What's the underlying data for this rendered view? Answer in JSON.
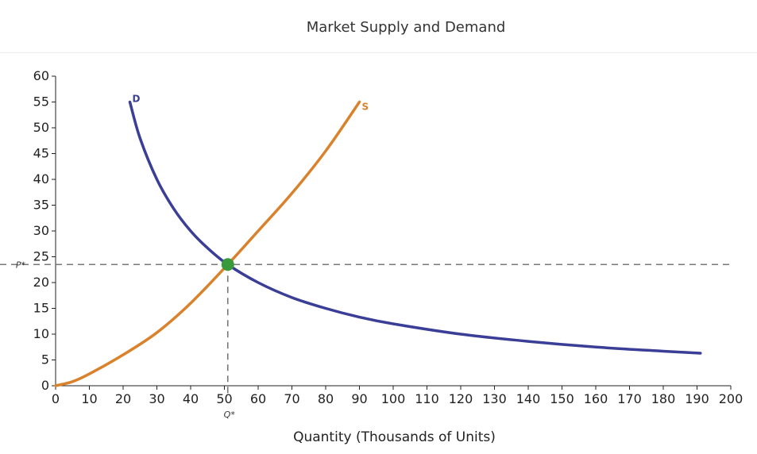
{
  "chart_data": {
    "type": "line",
    "title": "Market Supply and Demand",
    "xlabel": "Quantity (Thousands of Units)",
    "ylabel": "",
    "xlim": [
      0,
      200
    ],
    "ylim": [
      0,
      60
    ],
    "x_ticks": [
      0,
      10,
      20,
      30,
      40,
      50,
      60,
      70,
      80,
      90,
      100,
      110,
      120,
      130,
      140,
      150,
      160,
      170,
      180,
      190,
      200
    ],
    "y_ticks": [
      0,
      5,
      10,
      15,
      20,
      25,
      30,
      35,
      40,
      45,
      50,
      55,
      60
    ],
    "grid": false,
    "series": [
      {
        "name": "D",
        "color": "#3a3e96",
        "x": [
          22,
          25,
          30,
          35,
          40,
          45,
          51,
          60,
          70,
          80,
          90,
          100,
          120,
          140,
          160,
          180,
          191
        ],
        "y": [
          55,
          48,
          40,
          34.3,
          30,
          26.7,
          23.5,
          20,
          17.1,
          15,
          13.3,
          12,
          10,
          8.6,
          7.5,
          6.7,
          6.3
        ]
      },
      {
        "name": "S",
        "color": "#d9822b",
        "x": [
          0,
          5,
          10,
          20,
          30,
          40,
          51,
          60,
          70,
          80,
          90
        ],
        "y": [
          0,
          0.8,
          2.3,
          6,
          10.3,
          16,
          23.5,
          30,
          37.3,
          45.5,
          55
        ]
      }
    ],
    "equilibrium": {
      "x": 51,
      "y": 23.5,
      "color": "#3a9a3a"
    },
    "reference_lines": {
      "price_label": "P*",
      "quantity_label": "Q*"
    }
  }
}
